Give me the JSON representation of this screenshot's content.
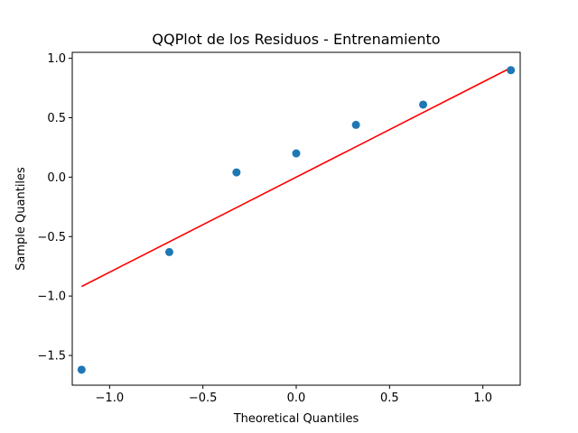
{
  "chart_data": {
    "type": "scatter",
    "title": "QQPlot de los Residuos - Entrenamiento",
    "xlabel": "Theoretical Quantiles",
    "ylabel": "Sample Quantiles",
    "xlim": [
      -1.2,
      1.2
    ],
    "ylim": [
      -1.75,
      1.05
    ],
    "xticks": [
      -1.0,
      -0.5,
      0.0,
      0.5,
      1.0
    ],
    "xtick_labels": [
      "−1.0",
      "−0.5",
      "0.0",
      "0.5",
      "1.0"
    ],
    "yticks": [
      1.0,
      0.5,
      0.0,
      -0.5,
      -1.0,
      -1.5
    ],
    "ytick_labels": [
      "1.0",
      "0.5",
      "0.0",
      "−0.5",
      "−1.0",
      "−1.5"
    ],
    "grid": false,
    "points": [
      {
        "x": -1.15,
        "y": -1.62
      },
      {
        "x": -0.68,
        "y": -0.63
      },
      {
        "x": -0.32,
        "y": 0.04
      },
      {
        "x": 0.0,
        "y": 0.2
      },
      {
        "x": 0.32,
        "y": 0.44
      },
      {
        "x": 0.68,
        "y": 0.61
      },
      {
        "x": 1.15,
        "y": 0.9
      }
    ],
    "reference_line": {
      "x": [
        -1.15,
        1.15
      ],
      "y": [
        -0.92,
        0.92
      ]
    },
    "colors": {
      "points": "#1f77b4",
      "line": "#ff0000"
    }
  }
}
